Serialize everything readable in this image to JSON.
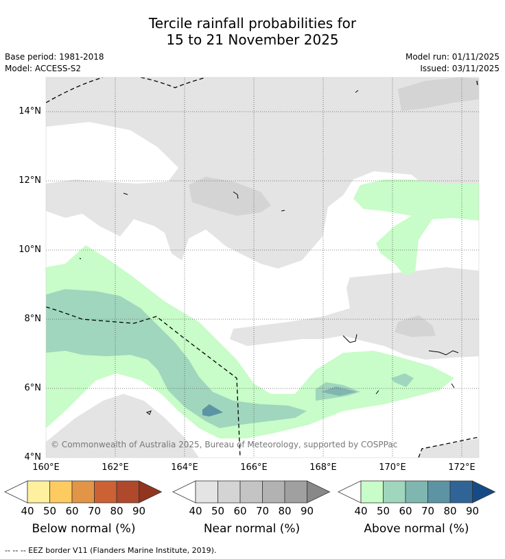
{
  "title": {
    "line1": "Tercile rainfall probabilities for",
    "line2": "15 to 21 November 2025"
  },
  "meta": {
    "base_period": "Base period: 1981-2018",
    "model": "Model: ACCESS-S2",
    "model_run": "Model run: 01/11/2025",
    "issued": "Issued: 03/11/2025"
  },
  "map": {
    "lat_ticks": [
      "14°N",
      "12°N",
      "10°N",
      "8°N",
      "6°N",
      "4°N"
    ],
    "lon_ticks": [
      "160°E",
      "162°E",
      "164°E",
      "166°E",
      "168°E",
      "170°E",
      "172°E"
    ],
    "copyright": "© Commonwealth of Australia 2025, Bureau of Meteorology, supported by COSPPac"
  },
  "legend": {
    "below": {
      "title": "Below normal (%)",
      "colors": [
        "#fff0a0",
        "#fecb60",
        "#e29546",
        "#cc6134",
        "#b0482b",
        "#92351f"
      ],
      "labels": [
        "40",
        "50",
        "60",
        "70",
        "80",
        "90"
      ]
    },
    "near": {
      "title": "Near normal (%)",
      "colors": [
        "#e4e4e4",
        "#d4d4d4",
        "#c4c4c4",
        "#b2b2b2",
        "#a0a0a0",
        "#888888"
      ],
      "labels": [
        "40",
        "50",
        "60",
        "70",
        "80",
        "90"
      ]
    },
    "above": {
      "title": "Above normal (%)",
      "colors": [
        "#c8fcc8",
        "#a0d6bd",
        "#80b6b0",
        "#5c94a4",
        "#316496",
        "#164a86"
      ],
      "labels": [
        "40",
        "50",
        "60",
        "70",
        "80",
        "90"
      ]
    }
  },
  "footer": {
    "eez_note": "--  --  -- EEZ border V11 (Flanders Marine Institute, 2019)."
  }
}
